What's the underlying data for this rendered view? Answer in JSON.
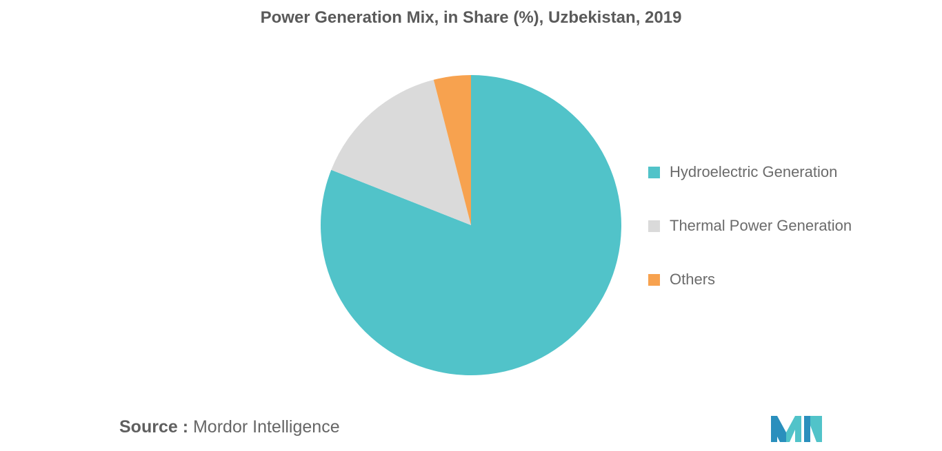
{
  "chart_data": {
    "type": "pie",
    "title": "Power Generation Mix, in Share (%), Uzbekistan, 2019",
    "slices": [
      {
        "label": "Hydroelectric Generation",
        "value": 81,
        "color": "#51c3c9"
      },
      {
        "label": "Thermal Power Generation",
        "value": 15,
        "color": "#dadada"
      },
      {
        "label": "Others",
        "value": 4,
        "color": "#f7a24f"
      }
    ],
    "start": "12 o'clock",
    "direction": "clockwise",
    "legend_position": "right"
  },
  "source": {
    "prefix": "Source :",
    "text": "Mordor Intelligence"
  },
  "logo": {
    "icon": "mordor-intelligence-logo-icon",
    "colors": [
      "#2a8fbd",
      "#51c3c9"
    ]
  }
}
